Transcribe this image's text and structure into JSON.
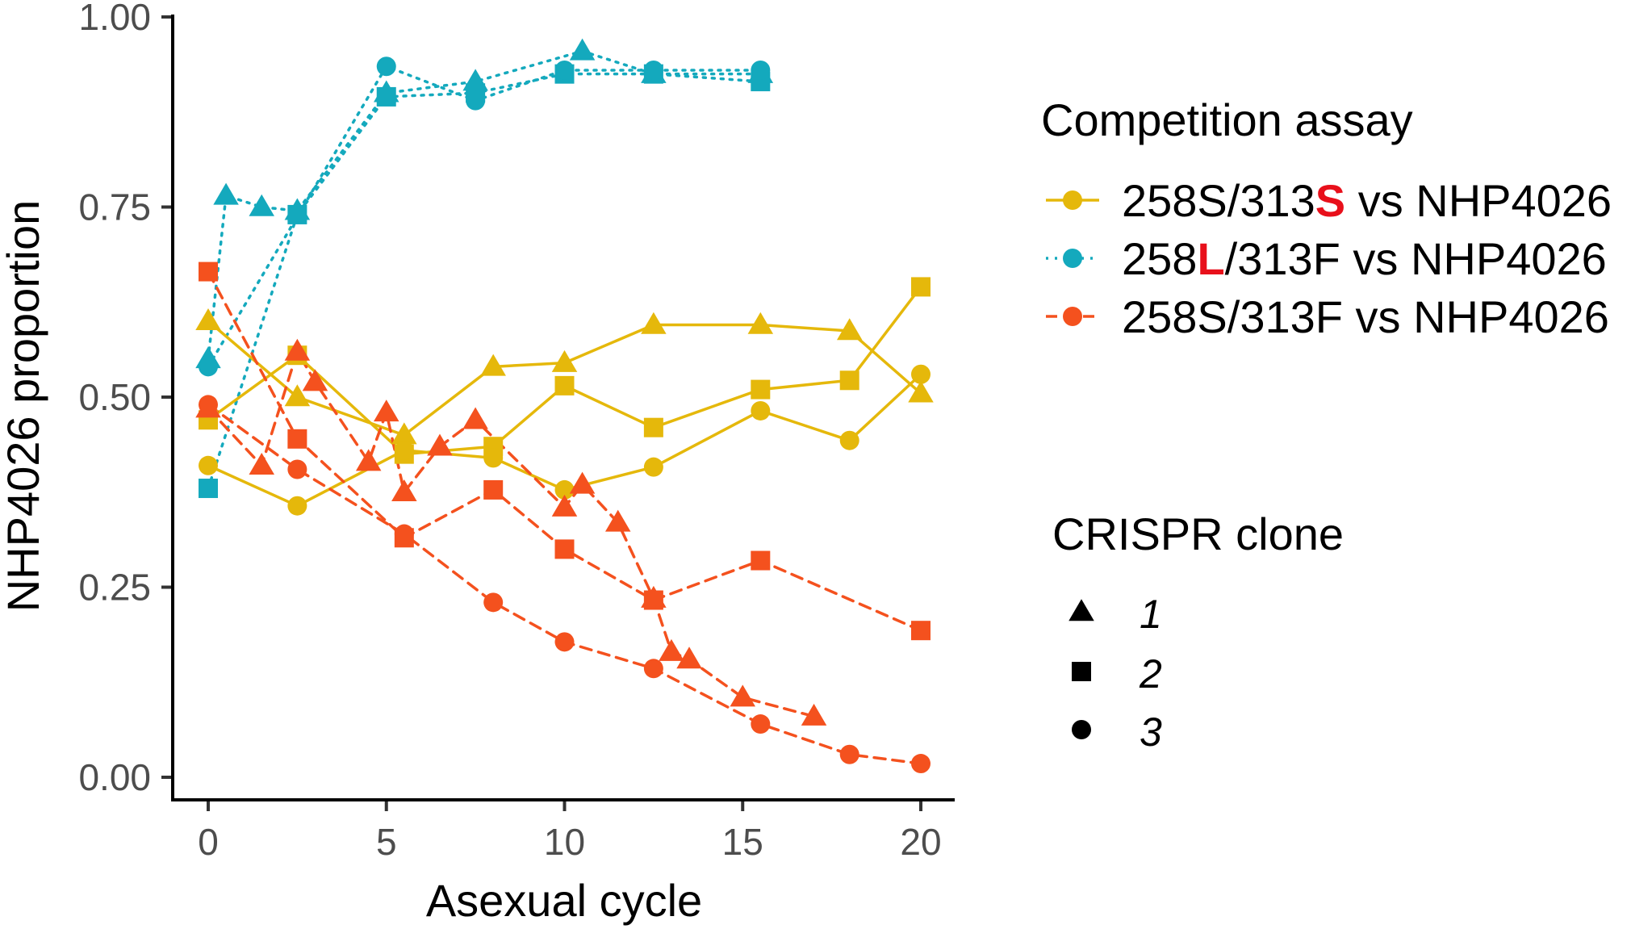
{
  "chart_data": {
    "type": "line",
    "xlabel": "Asexual cycle",
    "ylabel": "NHP4026 proportion",
    "xlim": [
      -1,
      21
    ],
    "ylim": [
      0,
      1
    ],
    "xticks": [
      0,
      5,
      10,
      15,
      20
    ],
    "yticks": [
      0,
      0.25,
      0.5,
      0.75,
      1
    ],
    "xtick_labels": [
      "0",
      "5",
      "10",
      "15",
      "20"
    ],
    "ytick_labels": [
      "0.00",
      "0.25",
      "0.50",
      "0.75",
      "1.00"
    ],
    "grid": false,
    "legends": {
      "assay": {
        "title": "Competition assay",
        "entries": [
          {
            "key": "yellow",
            "parts": [
              "258S/313",
              "S",
              " vs NHP4026"
            ],
            "highlight_index": 1
          },
          {
            "key": "teal",
            "parts": [
              "258",
              "L",
              "/313F vs NHP4026"
            ],
            "highlight_index": 1
          },
          {
            "key": "orange",
            "parts": [
              "258S/313F vs NHP4026"
            ],
            "highlight_index": -1
          }
        ]
      },
      "clone": {
        "title": "CRISPR clone",
        "entries": [
          {
            "shape": "triangle",
            "label": "1"
          },
          {
            "shape": "square",
            "label": "2"
          },
          {
            "shape": "circle",
            "label": "3"
          }
        ]
      },
      "placement": "right"
    },
    "assays": {
      "yellow": {
        "color": "#E5B80B",
        "dash": "solid",
        "highlight_color": "#E8101B"
      },
      "teal": {
        "color": "#14A9BD",
        "dash": "dotted",
        "highlight_color": "#E8101B"
      },
      "orange": {
        "color": "#F4511E",
        "dash": "dashed"
      }
    },
    "series": [
      {
        "assay": "teal",
        "clone": "1",
        "x": [
          0,
          0.5,
          1.5,
          2.5,
          5,
          7.5,
          10.5,
          12.5,
          15.5
        ],
        "y": [
          0.55,
          0.765,
          0.75,
          0.745,
          0.9,
          0.915,
          0.955,
          0.925,
          0.925
        ]
      },
      {
        "assay": "teal",
        "clone": "2",
        "x": [
          0,
          2.5,
          5,
          7.5,
          10,
          12.5,
          15.5
        ],
        "y": [
          0.38,
          0.74,
          0.895,
          0.9,
          0.925,
          0.925,
          0.915
        ]
      },
      {
        "assay": "teal",
        "clone": "3",
        "x": [
          0,
          5,
          7.5,
          10,
          12.5,
          15.5
        ],
        "y": [
          0.54,
          0.935,
          0.89,
          0.93,
          0.93,
          0.93
        ]
      },
      {
        "assay": "yellow",
        "clone": "1",
        "x": [
          0,
          2.5,
          5.5,
          8,
          10,
          12.5,
          15.5,
          18,
          20
        ],
        "y": [
          0.6,
          0.5,
          0.45,
          0.54,
          0.545,
          0.595,
          0.595,
          0.587,
          0.505
        ]
      },
      {
        "assay": "yellow",
        "clone": "2",
        "x": [
          0,
          2.5,
          5.5,
          8,
          10,
          12.5,
          15.5,
          18,
          20
        ],
        "y": [
          0.47,
          0.555,
          0.425,
          0.435,
          0.515,
          0.46,
          0.51,
          0.522,
          0.645
        ]
      },
      {
        "assay": "yellow",
        "clone": "3",
        "x": [
          0,
          2.5,
          5.5,
          8,
          10,
          12.5,
          15.5,
          18,
          20
        ],
        "y": [
          0.41,
          0.357,
          0.43,
          0.42,
          0.378,
          0.408,
          0.482,
          0.443,
          0.53
        ]
      },
      {
        "assay": "orange",
        "clone": "1",
        "x": [
          0,
          1.5,
          2.5,
          3,
          4.5,
          5,
          5.5,
          6.5,
          7.5,
          10,
          10.5,
          11.5,
          12.5,
          13,
          13.5,
          15,
          17
        ],
        "y": [
          0.485,
          0.41,
          0.56,
          0.52,
          0.415,
          0.48,
          0.375,
          0.435,
          0.47,
          0.355,
          0.385,
          0.335,
          0.235,
          0.165,
          0.155,
          0.105,
          0.08
        ]
      },
      {
        "assay": "orange",
        "clone": "2",
        "x": [
          0,
          2.5,
          5.5,
          8,
          10,
          12.5,
          15.5,
          20
        ],
        "y": [
          0.665,
          0.445,
          0.315,
          0.378,
          0.3,
          0.233,
          0.285,
          0.193
        ]
      },
      {
        "assay": "orange",
        "clone": "3",
        "x": [
          0,
          2.5,
          5.5,
          8,
          10,
          12.5,
          15.5,
          18,
          20
        ],
        "y": [
          0.49,
          0.405,
          0.32,
          0.23,
          0.178,
          0.143,
          0.07,
          0.03,
          0.018
        ]
      }
    ]
  }
}
